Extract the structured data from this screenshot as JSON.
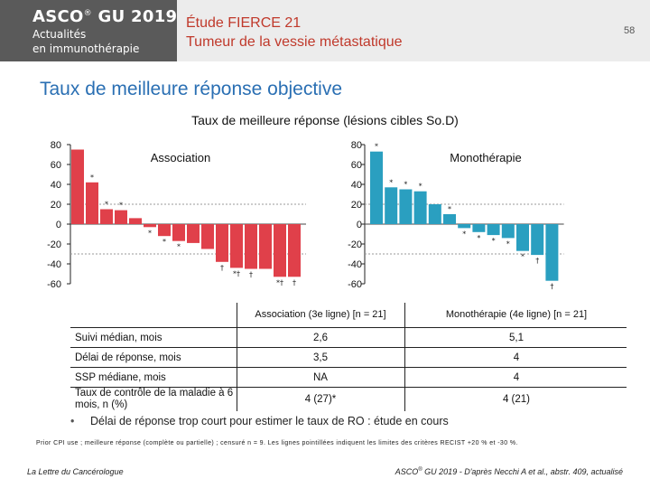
{
  "header": {
    "brand_line1": "ASCO",
    "brand_reg": "®",
    "brand_year": " GU 2019",
    "brand_line2": "Actualités",
    "brand_line3": "en immunothérapie",
    "title_line1": "Étude FIERCE 21",
    "title_line2": "Tumeur de la vessie métastatique",
    "page_number": "58"
  },
  "slide_title": "Taux de meilleure réponse objective",
  "chart_title": "Taux de meilleure réponse (lésions cibles So.D)",
  "colors": {
    "association": "#e0404a",
    "monotherapy": "#2a9fc0",
    "title": "#2a6fb3",
    "header_red": "#c0392b"
  },
  "chart_data": [
    {
      "type": "bar",
      "title": "Association",
      "ylim": [
        -60,
        80
      ],
      "yticks": [
        80,
        60,
        40,
        20,
        0,
        -20,
        -40,
        -60
      ],
      "values": [
        75,
        42,
        15,
        14,
        6,
        -3,
        -12,
        -17,
        -19,
        -25,
        -38,
        -44,
        -45,
        -45,
        -53,
        -53
      ],
      "markers": [
        "",
        "*",
        "*",
        "*",
        "",
        "*",
        "*",
        "*",
        "",
        "",
        "†",
        "*†",
        "†",
        "",
        "*†",
        "†"
      ]
    },
    {
      "type": "bar",
      "title": "Monothérapie",
      "ylim": [
        -60,
        80
      ],
      "yticks": [
        80,
        60,
        40,
        20,
        0,
        -20,
        -40,
        -60
      ],
      "values": [
        73,
        37,
        35,
        33,
        20,
        10,
        -4,
        -8,
        -11,
        -14,
        -27,
        -31,
        -57
      ],
      "markers": [
        "*",
        "*",
        "*",
        "*",
        "",
        "*",
        "*",
        "*",
        "*",
        "*",
        "*",
        "†",
        "†"
      ]
    }
  ],
  "table": {
    "col_headers": [
      "Association (3e ligne) [n = 21]",
      "Monothérapie (4e ligne) [n = 21]"
    ],
    "rows": [
      {
        "label": "Suivi médian, mois",
        "association": "2,6",
        "monotherapy": "5,1"
      },
      {
        "label": "Délai de réponse, mois",
        "association": "3,5",
        "monotherapy": "4"
      },
      {
        "label": "SSP médiane, mois",
        "association": "NA",
        "monotherapy": "4"
      },
      {
        "label": "Taux de contrôle de la maladie à 6 mois, n (%)",
        "association": "4 (27)*",
        "monotherapy": "4 (21)"
      }
    ]
  },
  "bullet": {
    "symbol": "•",
    "text": "Délai de réponse trop court pour estimer le taux de RO : étude en cours"
  },
  "footnote": "Prior CPI use ; meilleure réponse (complète ou partielle) ; censuré n = 9. Les lignes pointillées indiquent les limites des critères RECIST +20 % et -30 %.",
  "footer": {
    "left": "La Lettre du Cancérologue",
    "right_prefix": "ASCO",
    "right_reg": "®",
    "right_rest": " GU 2019 - D'après Necchi A et al., abstr. 409, actualisé"
  }
}
